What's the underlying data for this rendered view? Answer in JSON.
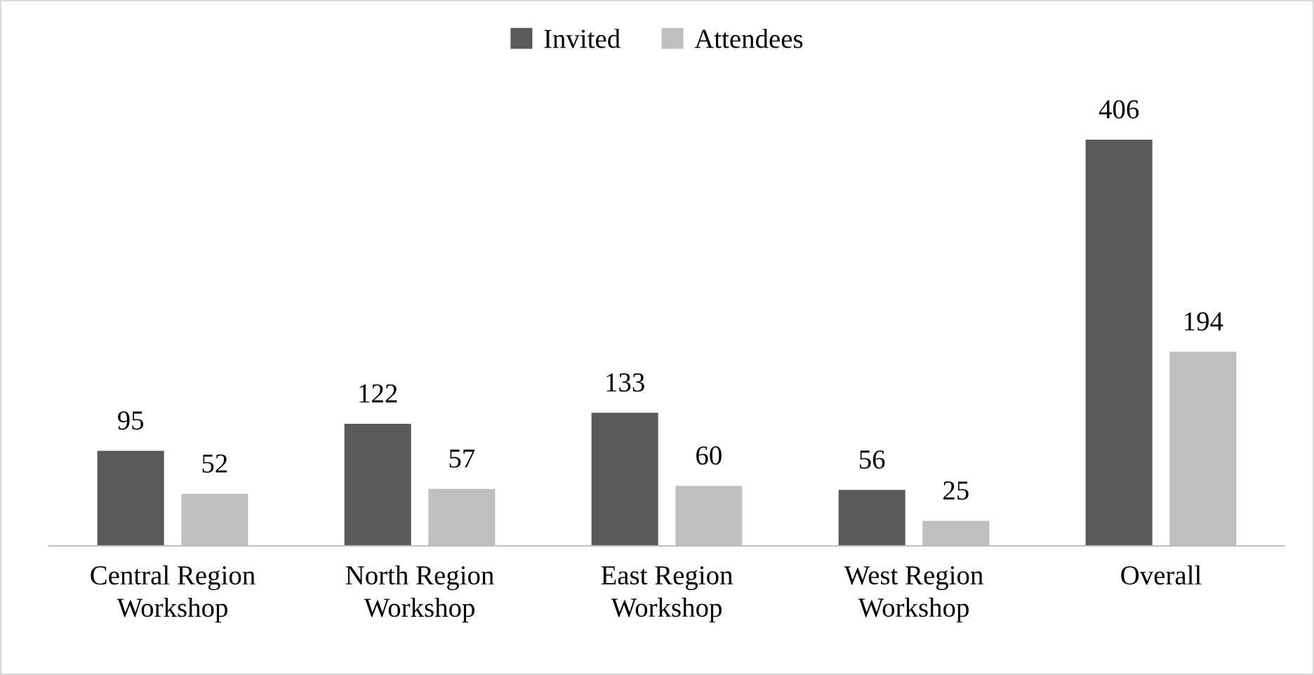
{
  "chart_data": {
    "type": "bar",
    "categories": [
      "Central Region\nWorkshop",
      "North Region\nWorkshop",
      "East Region\nWorkshop",
      "West Region\nWorkshop",
      "Overall"
    ],
    "series": [
      {
        "name": "Invited",
        "color": "#595959",
        "values": [
          95,
          122,
          133,
          56,
          406
        ]
      },
      {
        "name": "Attendees",
        "color": "#bfbfbf",
        "values": [
          52,
          57,
          60,
          25,
          194
        ]
      }
    ],
    "data_labels": true,
    "legend": "top",
    "grid": false
  }
}
